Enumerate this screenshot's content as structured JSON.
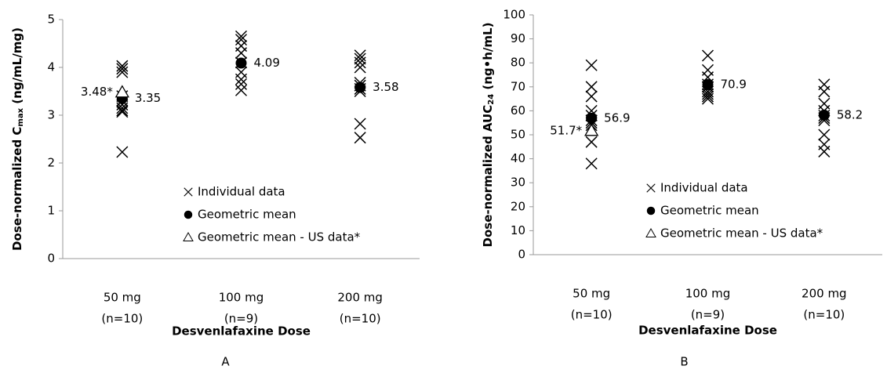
{
  "chart_data": [
    {
      "type": "scatter",
      "panel": "A",
      "ylabel": [
        "Dose-normalized C",
        "max",
        " (ng/mL/mg)"
      ],
      "xlabel": "Desvenlafaxine Dose",
      "categories": [
        "50 mg",
        "100 mg",
        "200 mg"
      ],
      "category_notes": [
        "(n=10)",
        "(n=9)",
        "(n=10)"
      ],
      "ylim": [
        0,
        5
      ],
      "yticks": [
        0,
        1,
        2,
        3,
        4,
        5
      ],
      "grid": false,
      "legend": "lower right",
      "series": [
        {
          "name": "Individual data",
          "marker": "x",
          "color": "#000000",
          "values": [
            [
              4.03,
              3.97,
              3.9,
              3.4,
              3.3,
              3.22,
              3.15,
              3.1,
              3.07,
              2.23
            ],
            [
              4.65,
              4.58,
              4.45,
              4.3,
              4.1,
              3.9,
              3.75,
              3.65,
              3.52
            ],
            [
              4.25,
              4.18,
              4.1,
              4.0,
              3.68,
              3.62,
              3.55,
              3.5,
              2.82,
              2.53
            ]
          ]
        },
        {
          "name": "Geometric mean",
          "marker": "circle",
          "color": "#000000",
          "values": [
            3.35,
            4.09,
            3.58
          ]
        },
        {
          "name": "Geometric mean - US data*",
          "marker": "triangle",
          "color": "#000000",
          "values": [
            3.48,
            null,
            null
          ],
          "value_labels": [
            "3.48*",
            null,
            null
          ]
        }
      ]
    },
    {
      "type": "scatter",
      "panel": "B",
      "ylabel": [
        "Dose-normalized AUC",
        "24",
        " (ng•h/mL)"
      ],
      "xlabel": "Desvenlafaxine Dose",
      "categories": [
        "50 mg",
        "100 mg",
        "200 mg"
      ],
      "category_notes": [
        "(n=10)",
        "(n=9)",
        "(n=10)"
      ],
      "ylim": [
        0,
        100
      ],
      "yticks": [
        0,
        10,
        20,
        30,
        40,
        50,
        60,
        70,
        80,
        90,
        100
      ],
      "grid": false,
      "legend": "lower right",
      "series": [
        {
          "name": "Individual data",
          "marker": "x",
          "color": "#000000",
          "values": [
            [
              79,
              70,
              66,
              60,
              58,
              56,
              55,
              54,
              47,
              38
            ],
            [
              83,
              77,
              74,
              71,
              70,
              68,
              67,
              66,
              65
            ],
            [
              71,
              68,
              63,
              60,
              58,
              57,
              56,
              50,
              46,
              43
            ]
          ]
        },
        {
          "name": "Geometric mean",
          "marker": "circle",
          "color": "#000000",
          "values": [
            56.9,
            70.9,
            58.2
          ]
        },
        {
          "name": "Geometric mean - US data*",
          "marker": "triangle",
          "color": "#000000",
          "values": [
            51.7,
            null,
            null
          ],
          "value_labels": [
            "51.7*",
            null,
            null
          ]
        }
      ]
    }
  ]
}
